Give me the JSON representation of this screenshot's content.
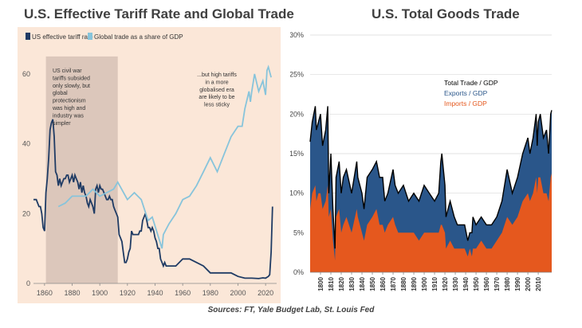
{
  "sources": "Sources: FT, Yale Budget Lab, St. Louis Fed",
  "colors": {
    "tariff": "#1f3b64",
    "trade": "#87c4db",
    "shade": "#dcc7bb",
    "exports": "#2a568a",
    "imports": "#e5581e",
    "total": "#000000"
  },
  "chart_data": [
    {
      "type": "line",
      "title": "U.S. Effective Tariff Rate and Global Trade",
      "ylim": [
        0,
        70
      ],
      "xlim": [
        1852,
        2028
      ],
      "yticks": [
        0,
        20,
        40,
        60
      ],
      "xticks": [
        1860,
        1880,
        1900,
        1920,
        1940,
        1960,
        1980,
        2000,
        2020
      ],
      "shaded_region": [
        1861,
        1913
      ],
      "legend_position": "top-left",
      "series": [
        {
          "name": "US effective tariff rate",
          "x": [
            1852,
            1853,
            1854,
            1855,
            1856,
            1857,
            1858,
            1859,
            1860,
            1861,
            1862,
            1863,
            1864,
            1865,
            1866,
            1867,
            1868,
            1869,
            1870,
            1871,
            1872,
            1873,
            1874,
            1875,
            1876,
            1877,
            1878,
            1879,
            1880,
            1881,
            1882,
            1883,
            1884,
            1885,
            1886,
            1887,
            1888,
            1889,
            1890,
            1891,
            1892,
            1893,
            1894,
            1895,
            1896,
            1897,
            1898,
            1899,
            1900,
            1901,
            1902,
            1903,
            1904,
            1905,
            1906,
            1907,
            1908,
            1909,
            1910,
            1911,
            1912,
            1913,
            1914,
            1915,
            1916,
            1917,
            1918,
            1919,
            1920,
            1921,
            1922,
            1923,
            1924,
            1925,
            1926,
            1927,
            1928,
            1929,
            1930,
            1931,
            1932,
            1933,
            1934,
            1935,
            1936,
            1937,
            1938,
            1939,
            1940,
            1941,
            1942,
            1943,
            1944,
            1945,
            1946,
            1947,
            1948,
            1949,
            1950,
            1955,
            1960,
            1965,
            1970,
            1975,
            1980,
            1985,
            1990,
            1995,
            2000,
            2005,
            2010,
            2015,
            2018,
            2020,
            2022,
            2023,
            2024,
            2025
          ],
          "values": [
            24,
            24,
            24,
            23,
            22,
            22,
            20,
            16,
            15,
            26,
            30,
            36,
            44,
            46,
            47,
            42,
            32,
            31,
            28,
            30,
            28,
            29,
            30,
            30,
            31,
            31,
            29,
            30,
            31,
            29,
            31,
            30,
            29,
            27,
            29,
            26,
            28,
            26,
            25,
            23,
            22,
            24,
            23,
            22,
            20,
            27,
            28,
            26,
            28,
            27,
            27,
            26,
            25,
            24,
            24,
            25,
            24,
            24,
            22,
            21,
            20,
            19,
            14,
            13,
            12,
            9,
            6,
            6,
            7,
            9,
            10,
            15,
            14,
            14,
            14,
            14,
            14,
            15,
            15,
            18,
            19,
            20,
            18,
            16,
            16,
            15,
            16,
            15,
            13,
            12,
            10,
            10,
            7,
            6,
            5,
            6,
            5,
            5,
            5,
            5,
            7,
            7,
            6,
            5,
            3,
            3,
            3,
            3,
            2,
            1.5,
            1.5,
            1.4,
            1.6,
            1.5,
            2,
            2.5,
            9,
            22
          ]
        },
        {
          "name": "Global trade as a share of GDP",
          "x": [
            1870,
            1875,
            1880,
            1885,
            1890,
            1895,
            1900,
            1905,
            1910,
            1913,
            1920,
            1925,
            1930,
            1935,
            1938,
            1945,
            1946,
            1950,
            1955,
            1960,
            1965,
            1970,
            1975,
            1980,
            1985,
            1990,
            1995,
            2000,
            2003,
            2005,
            2008,
            2009,
            2010,
            2012,
            2015,
            2018,
            2020,
            2021,
            2022,
            2024
          ],
          "values": [
            22,
            23,
            25,
            25,
            25,
            27,
            25,
            26,
            27,
            29,
            24,
            26,
            24,
            18,
            19,
            10,
            14,
            17,
            20,
            24,
            25,
            28,
            32,
            36,
            32,
            37,
            42,
            45,
            45,
            50,
            55,
            52,
            55,
            60,
            55,
            58,
            54,
            61,
            62,
            59
          ]
        }
      ],
      "annotations": [
        "US civil war tariffs subsided only slowly, but global protectionism was high and industry was simpler",
        "...but high tariffs in a more globalised era are likely to be less sticky"
      ]
    },
    {
      "type": "area",
      "title": "U.S. Total Goods Trade",
      "ylim": [
        0,
        30
      ],
      "xlim": [
        1790,
        2023
      ],
      "yticks": [
        "0%",
        "5%",
        "10%",
        "15%",
        "20%",
        "25%",
        "30%"
      ],
      "xticks": [
        1800,
        1810,
        1820,
        1830,
        1840,
        1850,
        1860,
        1870,
        1880,
        1890,
        1900,
        1910,
        1920,
        1930,
        1940,
        1950,
        1960,
        1970,
        1980,
        1990,
        2000,
        2010
      ],
      "legend_position": "top-center",
      "x": [
        1790,
        1792,
        1795,
        1796,
        1798,
        1800,
        1802,
        1805,
        1807,
        1808,
        1810,
        1812,
        1814,
        1815,
        1818,
        1820,
        1822,
        1825,
        1830,
        1835,
        1836,
        1840,
        1842,
        1845,
        1850,
        1854,
        1857,
        1860,
        1862,
        1865,
        1870,
        1872,
        1875,
        1880,
        1885,
        1890,
        1895,
        1900,
        1905,
        1910,
        1914,
        1916,
        1917,
        1920,
        1921,
        1925,
        1929,
        1932,
        1935,
        1939,
        1942,
        1944,
        1946,
        1947,
        1950,
        1955,
        1960,
        1965,
        1970,
        1975,
        1980,
        1985,
        1990,
        1995,
        2000,
        2002,
        2005,
        2008,
        2009,
        2010,
        2012,
        2015,
        2018,
        2020,
        2022,
        2023
      ],
      "series": [
        {
          "name": "Total Trade / GDP",
          "values": [
            16.5,
            19,
            21,
            18,
            19,
            20,
            16,
            18,
            21,
            10,
            15,
            8,
            3,
            12,
            14,
            10,
            12,
            13,
            10,
            14,
            12,
            10,
            8,
            12,
            13,
            14,
            12,
            12,
            9,
            10,
            13,
            11,
            10,
            11,
            9,
            10,
            9,
            11,
            10,
            9,
            10,
            14,
            15,
            11,
            7,
            9,
            7,
            6,
            6,
            6,
            4,
            5,
            5,
            7,
            6,
            7,
            6,
            6,
            7,
            9,
            13,
            10,
            12,
            15,
            17,
            15,
            17,
            20,
            16,
            19,
            20,
            17,
            18,
            15,
            20,
            20.5
          ]
        },
        {
          "name": "Exports / GDP",
          "values": [
            8.5,
            9,
            10,
            9,
            9,
            10,
            8,
            9,
            10,
            3,
            7,
            4,
            1.5,
            5,
            6,
            5,
            6,
            6,
            5,
            6,
            5,
            5,
            4,
            6,
            6,
            6,
            6,
            6,
            4,
            4,
            6,
            5,
            5,
            6,
            4,
            5,
            5,
            6,
            5,
            4,
            5,
            8,
            9,
            6,
            4,
            5,
            4,
            3,
            3,
            3,
            2,
            2,
            3,
            4,
            3,
            3,
            3,
            3,
            3,
            4,
            6,
            4,
            5,
            6,
            7,
            6,
            7,
            8,
            6,
            7,
            8,
            7,
            8,
            6,
            8,
            8
          ]
        },
        {
          "name": "Imports / GDP",
          "values": [
            8,
            10,
            11,
            9,
            10,
            10,
            8,
            9,
            11,
            7,
            8,
            4,
            1.5,
            7,
            8,
            5,
            6,
            7,
            5,
            8,
            7,
            5,
            4,
            6,
            7,
            8,
            6,
            6,
            5,
            6,
            7,
            6,
            5,
            5,
            5,
            5,
            4,
            5,
            5,
            5,
            5,
            6,
            6,
            5,
            3,
            4,
            3,
            3,
            3,
            3,
            2,
            3,
            2,
            3,
            3,
            4,
            3,
            3,
            4,
            5,
            7,
            6,
            7,
            9,
            10,
            9,
            10,
            12,
            10,
            12,
            12,
            10,
            10,
            9,
            12,
            12.5
          ]
        }
      ]
    }
  ]
}
